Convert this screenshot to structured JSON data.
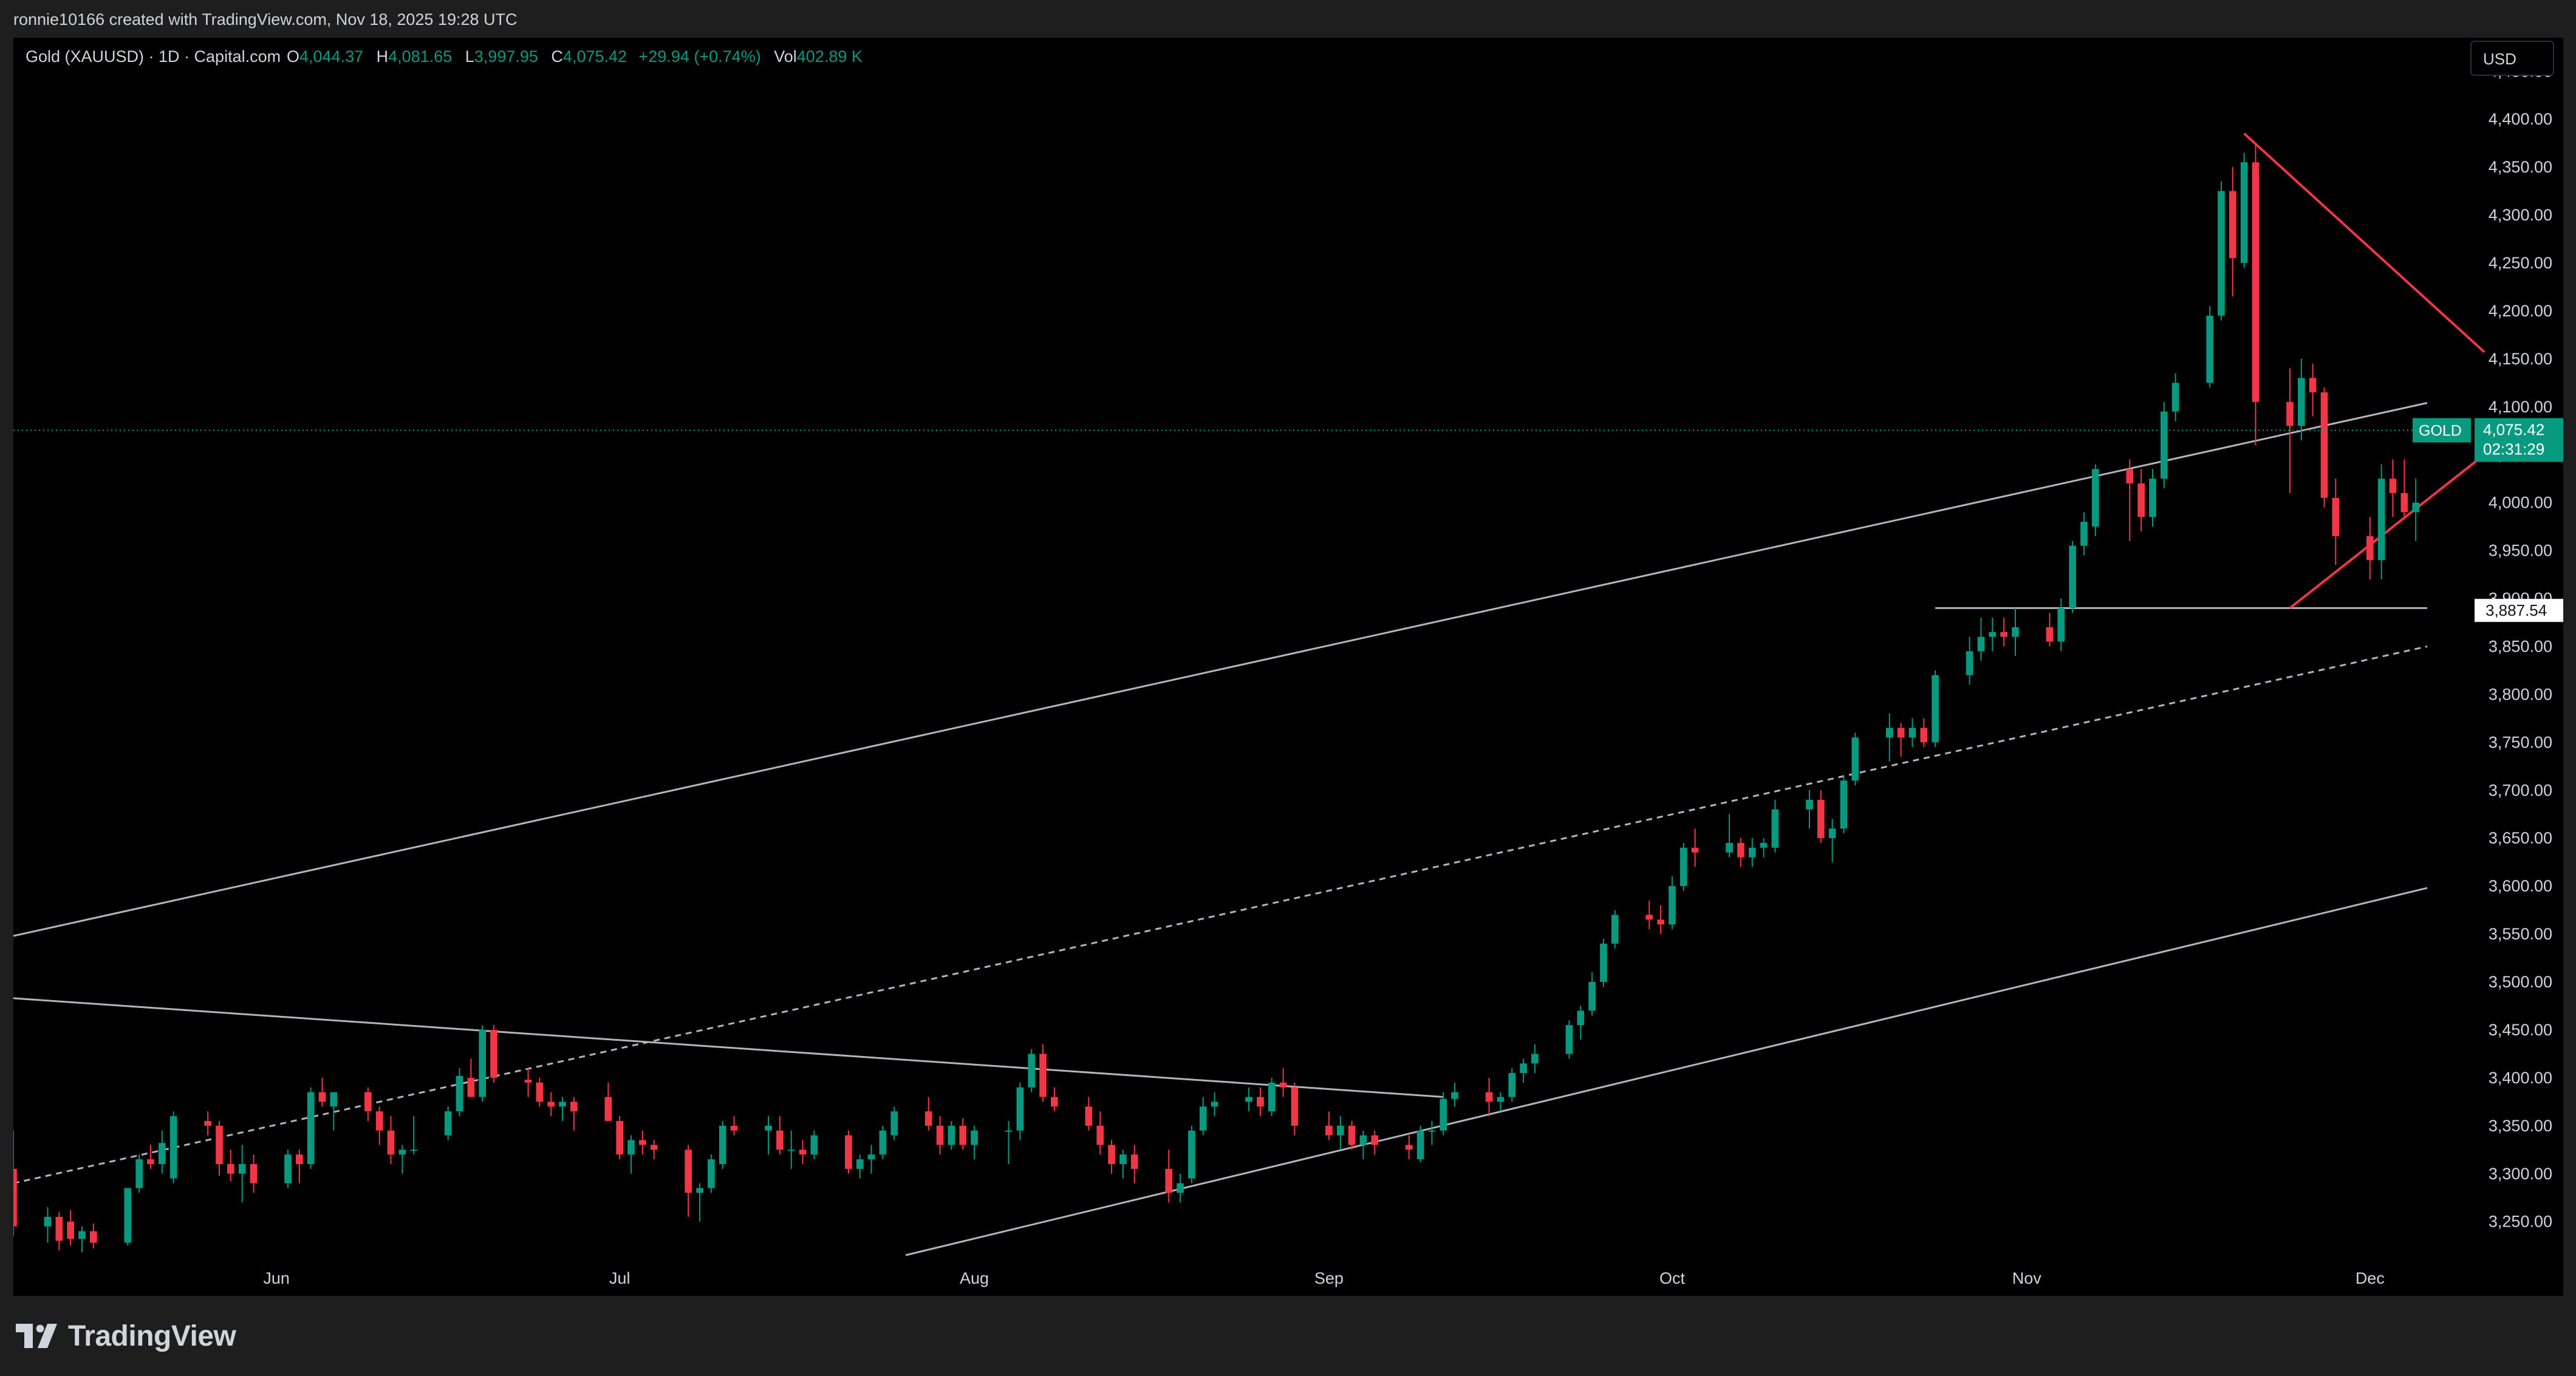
{
  "header": {
    "attribution": "ronnie10166 created with TradingView.com, Nov 18, 2025 19:28 UTC"
  },
  "legend": {
    "symbol": "Gold (XAUUSD) · 1D · Capital.com",
    "o_label": "O",
    "o_value": "4,044.37",
    "h_label": "H",
    "h_value": "4,081.65",
    "l_label": "L",
    "l_value": "3,997.95",
    "c_label": "C",
    "c_value": "4,075.42",
    "change": "+29.94 (+0.74%)",
    "vol_label": "Vol",
    "vol_value": "402.89 K"
  },
  "currency_button": "USD",
  "price_tag": {
    "name": "GOLD",
    "price": "4,075.42",
    "countdown": "02:31:29"
  },
  "level_tag": {
    "price": "3,887.54"
  },
  "footer": {
    "brand": "TradingView"
  },
  "colors": {
    "up": "#089981",
    "down": "#f23645",
    "trend": "#b2b5be",
    "red_trend": "#f23645",
    "orange_trend": "#b25a2e",
    "background": "#000000"
  },
  "chart_data": {
    "type": "candlestick",
    "title": "",
    "ylabel": "",
    "y_ticks": [
      3250,
      3300,
      3350,
      3400,
      3450,
      3500,
      3550,
      3600,
      3650,
      3700,
      3750,
      3800,
      3850,
      3900,
      3950,
      4000,
      4050,
      4100,
      4150,
      4200,
      4250,
      4300,
      4350,
      4400,
      4450
    ],
    "y_tick_labels": [
      "3,250.00",
      "3,300.00",
      "3,350.00",
      "3,400.00",
      "3,450.00",
      "3,500.00",
      "3,550.00",
      "3,600.00",
      "3,650.00",
      "3,700.00",
      "3,750.00",
      "3,800.00",
      "3,850.00",
      "3,900.00",
      "3,950.00",
      "4,000.00",
      "4,050.00",
      "4,100.00",
      "4,150.00",
      "4,200.00",
      "4,250.00",
      "4,300.00",
      "4,350.00",
      "4,400.00",
      "4,450.00"
    ],
    "ylim": [
      3215,
      4485
    ],
    "x_labels": [
      {
        "label": "Jun",
        "date": "2025-06-01"
      },
      {
        "label": "Jul",
        "date": "2025-07-01"
      },
      {
        "label": "Aug",
        "date": "2025-08-01"
      },
      {
        "label": "Sep",
        "date": "2025-09-01"
      },
      {
        "label": "Oct",
        "date": "2025-10-01"
      },
      {
        "label": "Nov",
        "date": "2025-11-01"
      },
      {
        "label": "Dec",
        "date": "2025-12-01"
      }
    ],
    "xlim": [
      "2025-05-09",
      "2025-12-06"
    ],
    "candles": [
      [
        "2025-05-09",
        3305,
        3345,
        3235,
        3245
      ],
      [
        "2025-05-12",
        3245,
        3265,
        3228,
        3255
      ],
      [
        "2025-05-13",
        3255,
        3260,
        3220,
        3230
      ],
      [
        "2025-05-14",
        3250,
        3262,
        3225,
        3232
      ],
      [
        "2025-05-15",
        3232,
        3245,
        3218,
        3240
      ],
      [
        "2025-05-16",
        3240,
        3248,
        3222,
        3228
      ],
      [
        "2025-05-19",
        3228,
        3285,
        3225,
        3285
      ],
      [
        "2025-05-20",
        3285,
        3320,
        3280,
        3315
      ],
      [
        "2025-05-21",
        3315,
        3330,
        3305,
        3310
      ],
      [
        "2025-05-22",
        3310,
        3345,
        3300,
        3332
      ],
      [
        "2025-05-23",
        3295,
        3365,
        3290,
        3360
      ],
      [
        "2025-05-26",
        3355,
        3365,
        3340,
        3350
      ],
      [
        "2025-05-27",
        3350,
        3355,
        3298,
        3310
      ],
      [
        "2025-05-28",
        3310,
        3325,
        3292,
        3300
      ],
      [
        "2025-05-29",
        3300,
        3330,
        3270,
        3310
      ],
      [
        "2025-05-30",
        3310,
        3320,
        3280,
        3290
      ],
      [
        "2025-06-02",
        3290,
        3325,
        3285,
        3320
      ],
      [
        "2025-06-03",
        3320,
        3325,
        3290,
        3310
      ],
      [
        "2025-06-04",
        3310,
        3390,
        3305,
        3385
      ],
      [
        "2025-06-05",
        3385,
        3400,
        3370,
        3375
      ],
      [
        "2025-06-06",
        3370,
        3385,
        3345,
        3385
      ],
      [
        "2025-06-09",
        3385,
        3390,
        3355,
        3365
      ],
      [
        "2025-06-10",
        3365,
        3370,
        3330,
        3345
      ],
      [
        "2025-06-11",
        3345,
        3360,
        3310,
        3320
      ],
      [
        "2025-06-12",
        3320,
        3330,
        3300,
        3325
      ],
      [
        "2025-06-13",
        3325,
        3360,
        3320,
        3325
      ],
      [
        "2025-06-16",
        3340,
        3370,
        3335,
        3365
      ],
      [
        "2025-06-17",
        3365,
        3410,
        3360,
        3402
      ],
      [
        "2025-06-18",
        3400,
        3420,
        3380,
        3380
      ],
      [
        "2025-06-19",
        3380,
        3455,
        3375,
        3450
      ],
      [
        "2025-06-20",
        3450,
        3455,
        3395,
        3400
      ],
      [
        "2025-06-23",
        3398,
        3410,
        3380,
        3395
      ],
      [
        "2025-06-24",
        3395,
        3400,
        3370,
        3375
      ],
      [
        "2025-06-25",
        3375,
        3385,
        3360,
        3370
      ],
      [
        "2025-06-26",
        3370,
        3380,
        3355,
        3375
      ],
      [
        "2025-06-27",
        3375,
        3380,
        3345,
        3365
      ],
      [
        "2025-06-30",
        3380,
        3395,
        3355,
        3355
      ],
      [
        "2025-07-01",
        3355,
        3360,
        3315,
        3320
      ],
      [
        "2025-07-02",
        3320,
        3340,
        3300,
        3335
      ],
      [
        "2025-07-03",
        3335,
        3345,
        3320,
        3330
      ],
      [
        "2025-07-04",
        3330,
        3335,
        3315,
        3325
      ],
      [
        "2025-07-07",
        3325,
        3330,
        3255,
        3280
      ],
      [
        "2025-07-08",
        3280,
        3290,
        3250,
        3285
      ],
      [
        "2025-07-09",
        3285,
        3320,
        3280,
        3315
      ],
      [
        "2025-07-10",
        3310,
        3355,
        3305,
        3350
      ],
      [
        "2025-07-11",
        3350,
        3360,
        3340,
        3345
      ],
      [
        "2025-07-14",
        3345,
        3360,
        3320,
        3350
      ],
      [
        "2025-07-15",
        3345,
        3360,
        3320,
        3325
      ],
      [
        "2025-07-16",
        3325,
        3345,
        3305,
        3325
      ],
      [
        "2025-07-17",
        3325,
        3335,
        3310,
        3320
      ],
      [
        "2025-07-18",
        3320,
        3345,
        3315,
        3340
      ],
      [
        "2025-07-21",
        3340,
        3345,
        3300,
        3305
      ],
      [
        "2025-07-22",
        3305,
        3320,
        3295,
        3315
      ],
      [
        "2025-07-23",
        3315,
        3330,
        3300,
        3320
      ],
      [
        "2025-07-24",
        3320,
        3350,
        3315,
        3345
      ],
      [
        "2025-07-25",
        3340,
        3370,
        3335,
        3365
      ],
      [
        "2025-07-28",
        3365,
        3380,
        3345,
        3350
      ],
      [
        "2025-07-29",
        3350,
        3360,
        3320,
        3330
      ],
      [
        "2025-07-30",
        3330,
        3355,
        3325,
        3350
      ],
      [
        "2025-07-31",
        3350,
        3358,
        3325,
        3330
      ],
      [
        "2025-08-01",
        3330,
        3350,
        3315,
        3345
      ],
      [
        "2025-08-04",
        3345,
        3355,
        3310,
        3345
      ],
      [
        "2025-08-05",
        3345,
        3395,
        3335,
        3390
      ],
      [
        "2025-08-06",
        3390,
        3430,
        3385,
        3425
      ],
      [
        "2025-08-07",
        3425,
        3435,
        3375,
        3380
      ],
      [
        "2025-08-08",
        3380,
        3390,
        3365,
        3370
      ],
      [
        "2025-08-11",
        3370,
        3380,
        3345,
        3350
      ],
      [
        "2025-08-12",
        3350,
        3365,
        3320,
        3330
      ],
      [
        "2025-08-13",
        3330,
        3335,
        3300,
        3310
      ],
      [
        "2025-08-14",
        3310,
        3325,
        3295,
        3320
      ],
      [
        "2025-08-15",
        3320,
        3330,
        3290,
        3305
      ],
      [
        "2025-08-18",
        3305,
        3325,
        3270,
        3280
      ],
      [
        "2025-08-19",
        3280,
        3300,
        3270,
        3290
      ],
      [
        "2025-08-20",
        3295,
        3350,
        3290,
        3345
      ],
      [
        "2025-08-21",
        3345,
        3380,
        3340,
        3370
      ],
      [
        "2025-08-22",
        3370,
        3385,
        3360,
        3375
      ],
      [
        "2025-08-25",
        3375,
        3390,
        3365,
        3380
      ],
      [
        "2025-08-26",
        3380,
        3390,
        3360,
        3370
      ],
      [
        "2025-08-27",
        3365,
        3400,
        3360,
        3395
      ],
      [
        "2025-08-28",
        3395,
        3410,
        3380,
        3390
      ],
      [
        "2025-08-29",
        3390,
        3395,
        3340,
        3350
      ],
      [
        "2025-09-01",
        3350,
        3365,
        3335,
        3340
      ],
      [
        "2025-09-02",
        3340,
        3360,
        3325,
        3350
      ],
      [
        "2025-09-03",
        3350,
        3355,
        3325,
        3330
      ],
      [
        "2025-09-04",
        3330,
        3345,
        3315,
        3340
      ],
      [
        "2025-09-05",
        3340,
        3345,
        3320,
        3330
      ],
      [
        "2025-09-08",
        3330,
        3340,
        3315,
        3325
      ],
      [
        "2025-09-09",
        3315,
        3350,
        3312,
        3345
      ],
      [
        "2025-09-10",
        3345,
        3355,
        3330,
        3345
      ],
      [
        "2025-09-11",
        3345,
        3385,
        3340,
        3378
      ],
      [
        "2025-09-12",
        3378,
        3395,
        3370,
        3385
      ],
      [
        "2025-09-15",
        3385,
        3400,
        3360,
        3375
      ],
      [
        "2025-09-16",
        3375,
        3385,
        3365,
        3380
      ],
      [
        "2025-09-17",
        3380,
        3410,
        3375,
        3405
      ],
      [
        "2025-09-18",
        3405,
        3420,
        3395,
        3415
      ],
      [
        "2025-09-19",
        3415,
        3435,
        3405,
        3425
      ],
      [
        "2025-09-22",
        3425,
        3460,
        3420,
        3455
      ],
      [
        "2025-09-23",
        3455,
        3475,
        3440,
        3470
      ],
      [
        "2025-09-24",
        3470,
        3510,
        3465,
        3500
      ],
      [
        "2025-09-25",
        3500,
        3545,
        3495,
        3540
      ],
      [
        "2025-09-26",
        3540,
        3575,
        3535,
        3570
      ],
      [
        "2025-09-29",
        3570,
        3585,
        3555,
        3565
      ],
      [
        "2025-09-30",
        3565,
        3580,
        3550,
        3560
      ],
      [
        "2025-10-01",
        3560,
        3610,
        3555,
        3600
      ],
      [
        "2025-10-02",
        3600,
        3645,
        3595,
        3640
      ],
      [
        "2025-10-03",
        3640,
        3660,
        3620,
        3635
      ],
      [
        "2025-10-06",
        3635,
        3675,
        3630,
        3645
      ],
      [
        "2025-10-07",
        3645,
        3650,
        3620,
        3630
      ],
      [
        "2025-10-08",
        3630,
        3650,
        3620,
        3640
      ],
      [
        "2025-10-09",
        3640,
        3650,
        3630,
        3645
      ],
      [
        "2025-10-10",
        3640,
        3690,
        3635,
        3680
      ],
      [
        "2025-10-13",
        3680,
        3700,
        3660,
        3690
      ],
      [
        "2025-10-14",
        3690,
        3700,
        3645,
        3650
      ],
      [
        "2025-10-15",
        3650,
        3670,
        3625,
        3660
      ],
      [
        "2025-10-16",
        3660,
        3715,
        3655,
        3710
      ],
      [
        "2025-10-17",
        3710,
        3760,
        3705,
        3755
      ],
      [
        "2025-10-20",
        3755,
        3780,
        3730,
        3765
      ],
      [
        "2025-10-21",
        3765,
        3770,
        3735,
        3755
      ],
      [
        "2025-10-22",
        3755,
        3775,
        3745,
        3765
      ],
      [
        "2025-10-23",
        3765,
        3775,
        3745,
        3750
      ],
      [
        "2025-10-24",
        3750,
        3825,
        3745,
        3820
      ],
      [
        "2025-10-27",
        3820,
        3860,
        3810,
        3845
      ],
      [
        "2025-10-28",
        3845,
        3880,
        3835,
        3860
      ],
      [
        "2025-10-29",
        3860,
        3880,
        3845,
        3865
      ],
      [
        "2025-10-30",
        3865,
        3880,
        3850,
        3860
      ],
      [
        "2025-10-31",
        3860,
        3890,
        3840,
        3870
      ],
      [
        "2025-11-03",
        3870,
        3885,
        3850,
        3855
      ],
      [
        "2025-11-04",
        3855,
        3900,
        3845,
        3890
      ],
      [
        "2025-11-05",
        3890,
        3960,
        3885,
        3955
      ],
      [
        "2025-11-06",
        3955,
        3990,
        3945,
        3980
      ],
      [
        "2025-11-07",
        3975,
        4040,
        3965,
        4035
      ],
      [
        "2025-11-10",
        4035,
        4045,
        3960,
        4020
      ],
      [
        "2025-11-11",
        4020,
        4035,
        3970,
        3985
      ],
      [
        "2025-11-12",
        3985,
        4035,
        3975,
        4025
      ],
      [
        "2025-11-13",
        4025,
        4105,
        4015,
        4095
      ],
      [
        "2025-11-14",
        4095,
        4135,
        4085,
        4125
      ],
      [
        "2025-11-17",
        4125,
        4205,
        4120,
        4195
      ],
      [
        "2025-11-18",
        4195,
        4335,
        4190,
        4325
      ],
      [
        "2025-11-19",
        4325,
        4350,
        4215,
        4255
      ],
      [
        "2025-11-20",
        4250,
        4365,
        4245,
        4355
      ],
      [
        "2025-11-21",
        4355,
        4375,
        4060,
        4105
      ],
      [
        "2025-11-24",
        4105,
        4140,
        4010,
        4080
      ],
      [
        "2025-11-25",
        4080,
        4150,
        4065,
        4130
      ],
      [
        "2025-11-26",
        4130,
        4145,
        4090,
        4115
      ],
      [
        "2025-11-27",
        4115,
        4120,
        3995,
        4005
      ],
      [
        "2025-11-28",
        4005,
        4025,
        3935,
        3965
      ],
      [
        "2025-12-01",
        3965,
        3985,
        3920,
        3940
      ],
      [
        "2025-12-02",
        3940,
        4040,
        3920,
        4025
      ],
      [
        "2025-12-03",
        4025,
        4045,
        3985,
        4010
      ],
      [
        "2025-12-04",
        4010,
        4045,
        3985,
        3990
      ],
      [
        "2025-12-05",
        3990,
        4025,
        3960,
        4000
      ]
    ],
    "x_note": "",
    "last_price": 4075.42,
    "marked_level": 3887.54,
    "trendlines": [
      {
        "style": "solid",
        "color": "trend",
        "from": [
          "2025-05-09",
          3548
        ],
        "to": [
          "2025-12-06",
          4104
        ]
      },
      {
        "style": "solid",
        "color": "trend",
        "from": [
          "2025-07-26",
          3215
        ],
        "to": [
          "2025-12-06",
          3598
        ]
      },
      {
        "style": "solid",
        "color": "trend",
        "from": [
          "2025-05-09",
          3483
        ],
        "to": [
          "2025-09-11",
          3380
        ]
      },
      {
        "style": "dashed",
        "color": "trend",
        "from": [
          "2025-05-09",
          3290
        ],
        "to": [
          "2025-12-06",
          3850
        ]
      },
      {
        "style": "solid",
        "color": "trend",
        "from": [
          "2025-10-24",
          3890
        ],
        "to": [
          "2025-12-06",
          3890
        ]
      }
    ],
    "red_trendlines": [
      {
        "from": [
          "2025-11-20",
          4385
        ],
        "to": [
          "2025-12-11",
          4157
        ]
      },
      {
        "from": [
          "2025-11-24",
          3890
        ],
        "to": [
          "2025-12-11",
          4050
        ]
      }
    ]
  }
}
